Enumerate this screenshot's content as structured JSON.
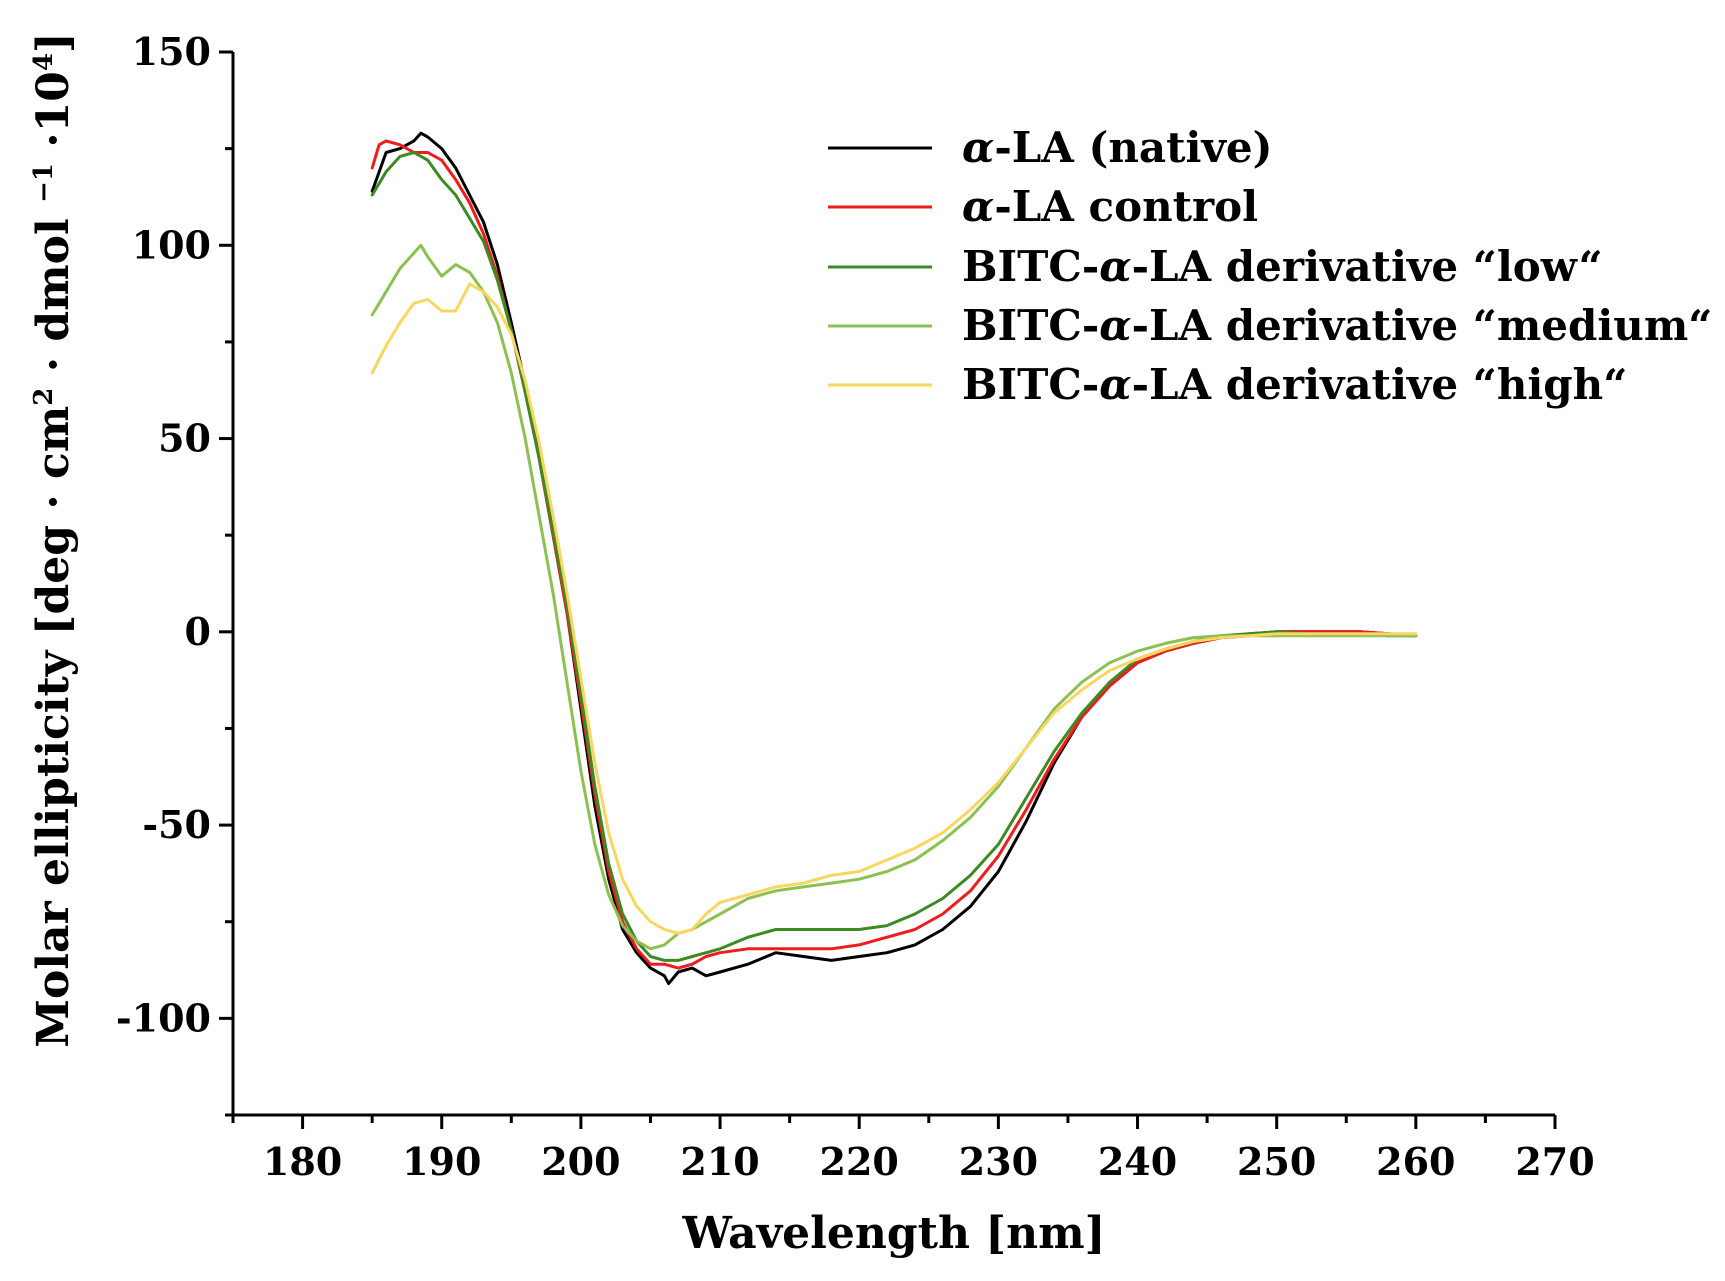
{
  "chart_data": {
    "type": "line",
    "title": "",
    "xlabel": "Wavelength [nm]",
    "ylabel": "Molar ellipticity [deg · cm² · dmol⁻¹ ·10⁴]",
    "xlim": [
      175,
      270
    ],
    "ylim": [
      -125,
      150
    ],
    "x_ticks": [
      180,
      190,
      200,
      210,
      220,
      230,
      240,
      250,
      260,
      270
    ],
    "x_tick_labels": [
      "180",
      "190",
      "200",
      "210",
      "220",
      "230",
      "240",
      "250",
      "260",
      "270"
    ],
    "y_ticks": [
      150,
      100,
      50,
      0,
      -50,
      -100
    ],
    "y_tick_labels": [
      "150",
      "100",
      "50",
      "0",
      "-50",
      "-100"
    ],
    "grid": false,
    "legend_position": "top-right",
    "series": [
      {
        "name": "α-LA (native)",
        "color": "#000000",
        "x": [
          185,
          186,
          187,
          188,
          188.5,
          189,
          190,
          191,
          192,
          193,
          194,
          195,
          196,
          197,
          198,
          199,
          200,
          201,
          202,
          203,
          204,
          205,
          206,
          206.3,
          207,
          208,
          209,
          210,
          212,
          214,
          216,
          218,
          220,
          222,
          224,
          226,
          228,
          230,
          232,
          234,
          236,
          238,
          240,
          242,
          244,
          246,
          248,
          250,
          252,
          254,
          256,
          258,
          260
        ],
        "y": [
          114,
          124,
          125,
          127,
          129,
          128,
          125,
          120,
          113,
          106,
          95,
          80,
          64,
          45,
          25,
          5,
          -20,
          -45,
          -64,
          -77,
          -83,
          -87,
          -89,
          -91,
          -88,
          -87,
          -89,
          -88,
          -86,
          -83,
          -84,
          -85,
          -84,
          -83,
          -81,
          -77,
          -71,
          -62,
          -49,
          -34,
          -22,
          -14,
          -8,
          -5,
          -3,
          -1.5,
          -1,
          0,
          0,
          0,
          0,
          -0.5,
          -1
        ]
      },
      {
        "name": "α-LA control",
        "color": "#ee1c1c",
        "x": [
          185,
          185.5,
          186,
          187,
          188,
          189,
          190,
          191,
          192,
          193,
          194,
          195,
          196,
          197,
          198,
          199,
          200,
          201,
          202,
          203,
          204,
          205,
          206,
          207,
          208,
          209,
          210,
          212,
          214,
          216,
          218,
          220,
          222,
          224,
          226,
          228,
          230,
          232,
          234,
          236,
          238,
          240,
          242,
          244,
          246,
          248,
          250,
          252,
          254,
          256,
          258,
          260
        ],
        "y": [
          120,
          126,
          127,
          126,
          124,
          124,
          122,
          117,
          111,
          103,
          92,
          78,
          62,
          45,
          25,
          5,
          -18,
          -42,
          -62,
          -75,
          -82,
          -86,
          -86,
          -87,
          -86,
          -84,
          -83,
          -82,
          -82,
          -82,
          -82,
          -81,
          -79,
          -77,
          -73,
          -67,
          -58,
          -46,
          -33,
          -22,
          -14,
          -8,
          -5,
          -3,
          -1.5,
          -0.5,
          0,
          0,
          0,
          0,
          -0.5,
          -1
        ]
      },
      {
        "name": "BITC-α-LA derivative “low“",
        "color": "#3d8a23",
        "x": [
          185,
          186,
          187,
          188,
          189,
          190,
          191,
          192,
          193,
          194,
          195,
          196,
          197,
          198,
          199,
          200,
          201,
          202,
          203,
          204,
          205,
          206,
          207,
          208,
          209,
          210,
          212,
          214,
          216,
          218,
          220,
          222,
          224,
          226,
          228,
          230,
          232,
          234,
          236,
          238,
          240,
          242,
          244,
          246,
          248,
          250,
          252,
          254,
          256,
          258,
          260
        ],
        "y": [
          113,
          119,
          123,
          124,
          122,
          117,
          113,
          107,
          101,
          91,
          78,
          62,
          45,
          26,
          7,
          -16,
          -40,
          -60,
          -73,
          -80,
          -84,
          -85,
          -85,
          -84,
          -83,
          -82,
          -79,
          -77,
          -77,
          -77,
          -77,
          -76,
          -73,
          -69,
          -63,
          -55,
          -43,
          -31,
          -21,
          -13,
          -7,
          -4.5,
          -2.5,
          -1,
          -0.5,
          0,
          -0.5,
          -0.5,
          -0.5,
          -1,
          -1
        ]
      },
      {
        "name": "BITC-α-LA derivative “medium“",
        "color": "#8dc053",
        "x": [
          185,
          186,
          187,
          188,
          188.5,
          189,
          190,
          191,
          192,
          193,
          194,
          195,
          196,
          197,
          198,
          199,
          200,
          201,
          202,
          203,
          204,
          205,
          206,
          207,
          208,
          209,
          210,
          212,
          214,
          216,
          218,
          220,
          222,
          224,
          226,
          228,
          230,
          232,
          234,
          236,
          238,
          240,
          242,
          244,
          246,
          248,
          250,
          252,
          254,
          256,
          258,
          260
        ],
        "y": [
          82,
          88,
          94,
          98,
          100,
          97,
          92,
          95,
          93,
          88,
          80,
          67,
          50,
          30,
          10,
          -13,
          -36,
          -55,
          -68,
          -76,
          -80,
          -82,
          -81,
          -78,
          -77,
          -75,
          -73,
          -69,
          -67,
          -66,
          -65,
          -64,
          -62,
          -59,
          -54,
          -48,
          -40,
          -30,
          -20,
          -13,
          -8,
          -5,
          -3,
          -1.5,
          -1,
          -1,
          -1,
          -1,
          -1,
          -1,
          -1,
          -1
        ]
      },
      {
        "name": "BITC-α-LA derivative “high“",
        "color": "#f8d660",
        "x": [
          185,
          186,
          187,
          188,
          189,
          190,
          191,
          192,
          193,
          194,
          195,
          196,
          197,
          198,
          199,
          200,
          201,
          202,
          203,
          204,
          205,
          206,
          207,
          208,
          209,
          210,
          212,
          214,
          216,
          218,
          220,
          222,
          224,
          226,
          228,
          230,
          232,
          234,
          236,
          238,
          240,
          242,
          244,
          246,
          248,
          250,
          252,
          254,
          256,
          258,
          260
        ],
        "y": [
          67,
          74,
          80,
          85,
          86,
          83,
          83,
          90,
          88,
          84,
          77,
          65,
          49,
          30,
          10,
          -12,
          -34,
          -52,
          -64,
          -71,
          -75,
          -77,
          -78,
          -77,
          -73,
          -70,
          -68,
          -66,
          -65,
          -63,
          -62,
          -59,
          -56,
          -52,
          -46,
          -39,
          -30,
          -21,
          -15,
          -10,
          -7,
          -4.5,
          -2.5,
          -1.5,
          -1,
          -0.5,
          -0.5,
          -0.5,
          -0.5,
          -0.5,
          -0.5
        ]
      }
    ]
  },
  "legend": {
    "items": [
      {
        "prefix": "",
        "greek": "α",
        "suffix": "-LA (native)"
      },
      {
        "prefix": "",
        "greek": "α",
        "suffix": "-LA control"
      },
      {
        "prefix": "BITC-",
        "greek": "α",
        "suffix": "-LA derivative “low“"
      },
      {
        "prefix": "BITC-",
        "greek": "α",
        "suffix": "-LA derivative “medium“"
      },
      {
        "prefix": "BITC-",
        "greek": "α",
        "suffix": "-LA derivative “high“"
      }
    ]
  },
  "ylabel_parts": {
    "main": "Molar ellipticity [deg · cm",
    "sup1": "2",
    "mid": " · dmol ",
    "sup2": "−1",
    "mid2": " ·10",
    "sup3": "4",
    "end": "]"
  }
}
